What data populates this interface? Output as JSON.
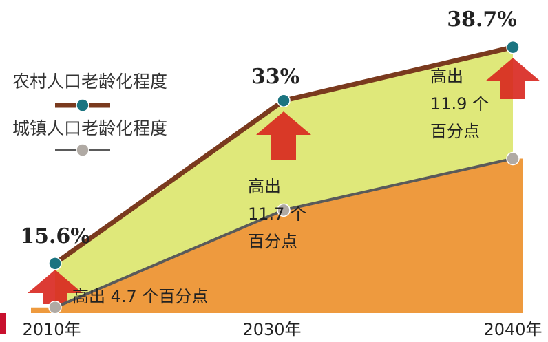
{
  "chart_data": {
    "type": "line",
    "categories": [
      "2010年",
      "2030年",
      "2040年"
    ],
    "series": [
      {
        "name": "农村人口老龄化程度",
        "color": "#7a3a1e",
        "marker_color": "#1b7480",
        "values": [
          15.6,
          33,
          38.7
        ],
        "value_labels": [
          "15.6%",
          "33%",
          "38.7%"
        ]
      },
      {
        "name": "城镇人口老龄化程度",
        "color": "#5a5a5a",
        "marker_color": "#b0aaa4",
        "values": [
          10.9,
          21.3,
          26.8
        ]
      }
    ],
    "band_color": "#dfe87a",
    "area_color": "#ee9a3e",
    "annotations": [
      [
        "高出 4.7 个百分点"
      ],
      [
        "高出",
        "11.7 个",
        "百分点"
      ],
      [
        "高出",
        "11.9 个",
        "百分点"
      ]
    ]
  }
}
